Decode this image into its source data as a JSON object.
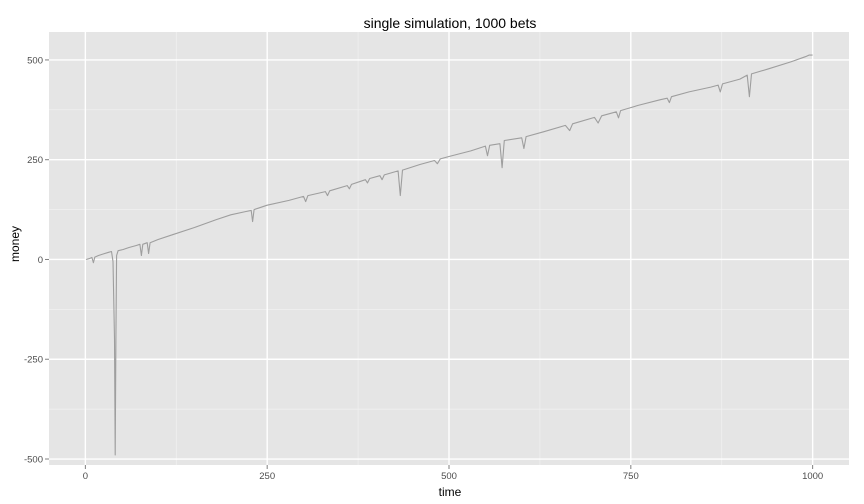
{
  "chart_data": {
    "type": "line",
    "title": "single simulation, 1000 bets",
    "xlabel": "time",
    "ylabel": "money",
    "xlim": [
      -50,
      1050
    ],
    "ylim": [
      -515,
      570
    ],
    "x_ticks": [
      0,
      250,
      500,
      750,
      1000
    ],
    "x_tick_labels": [
      "0",
      "250",
      "500",
      "750",
      "1000"
    ],
    "y_ticks": [
      -500,
      -250,
      0,
      250,
      500
    ],
    "y_tick_labels": [
      "-500",
      "-250",
      "0",
      "250",
      "500"
    ],
    "grid": true,
    "series": [
      {
        "color": "#9e9e9e",
        "points": [
          [
            1,
            0
          ],
          [
            5,
            2
          ],
          [
            9,
            5
          ],
          [
            11,
            -8
          ],
          [
            13,
            6
          ],
          [
            18,
            10
          ],
          [
            25,
            14
          ],
          [
            32,
            18
          ],
          [
            36,
            20
          ],
          [
            38,
            -5
          ],
          [
            40,
            -200
          ],
          [
            41,
            -490
          ],
          [
            42,
            -200
          ],
          [
            43,
            10
          ],
          [
            45,
            22
          ],
          [
            52,
            25
          ],
          [
            60,
            30
          ],
          [
            70,
            35
          ],
          [
            75,
            38
          ],
          [
            77,
            10
          ],
          [
            79,
            38
          ],
          [
            85,
            42
          ],
          [
            87,
            15
          ],
          [
            89,
            42
          ],
          [
            100,
            50
          ],
          [
            120,
            62
          ],
          [
            150,
            80
          ],
          [
            180,
            100
          ],
          [
            200,
            112
          ],
          [
            220,
            120
          ],
          [
            228,
            123
          ],
          [
            230,
            95
          ],
          [
            232,
            125
          ],
          [
            250,
            136
          ],
          [
            280,
            148
          ],
          [
            300,
            158
          ],
          [
            303,
            145
          ],
          [
            306,
            160
          ],
          [
            330,
            170
          ],
          [
            333,
            160
          ],
          [
            336,
            172
          ],
          [
            360,
            185
          ],
          [
            363,
            177
          ],
          [
            366,
            188
          ],
          [
            385,
            200
          ],
          [
            388,
            192
          ],
          [
            391,
            203
          ],
          [
            405,
            210
          ],
          [
            408,
            200
          ],
          [
            411,
            212
          ],
          [
            430,
            222
          ],
          [
            433,
            160
          ],
          [
            436,
            224
          ],
          [
            460,
            238
          ],
          [
            480,
            248
          ],
          [
            484,
            240
          ],
          [
            488,
            252
          ],
          [
            500,
            258
          ],
          [
            530,
            272
          ],
          [
            550,
            284
          ],
          [
            553,
            260
          ],
          [
            556,
            286
          ],
          [
            570,
            290
          ],
          [
            573,
            230
          ],
          [
            576,
            298
          ],
          [
            600,
            305
          ],
          [
            603,
            278
          ],
          [
            606,
            308
          ],
          [
            630,
            320
          ],
          [
            660,
            336
          ],
          [
            666,
            323
          ],
          [
            670,
            340
          ],
          [
            700,
            356
          ],
          [
            705,
            342
          ],
          [
            710,
            360
          ],
          [
            730,
            370
          ],
          [
            733,
            355
          ],
          [
            736,
            373
          ],
          [
            760,
            386
          ],
          [
            790,
            400
          ],
          [
            800,
            404
          ],
          [
            803,
            393
          ],
          [
            806,
            408
          ],
          [
            830,
            420
          ],
          [
            860,
            432
          ],
          [
            870,
            437
          ],
          [
            873,
            420
          ],
          [
            876,
            440
          ],
          [
            900,
            452
          ],
          [
            910,
            462
          ],
          [
            913,
            408
          ],
          [
            916,
            465
          ],
          [
            940,
            478
          ],
          [
            970,
            495
          ],
          [
            990,
            508
          ],
          [
            995,
            512
          ],
          [
            1000,
            512
          ]
        ]
      }
    ]
  }
}
